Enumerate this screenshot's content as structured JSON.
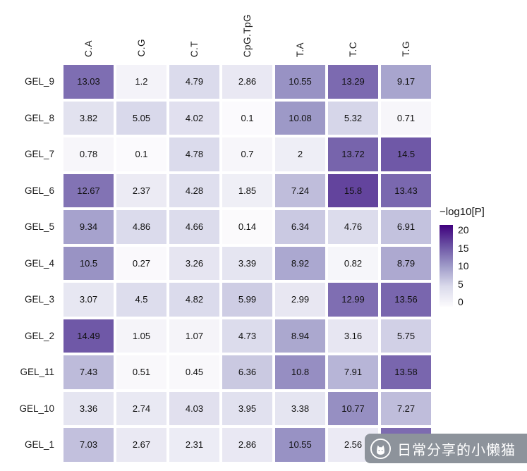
{
  "chart_data": {
    "type": "heatmap",
    "title": "",
    "columns": [
      "C.A",
      "C.G",
      "C.T",
      "CpG.TpG",
      "T.A",
      "T.C",
      "T.G"
    ],
    "rows": [
      "GEL_9",
      "GEL_8",
      "GEL_7",
      "GEL_6",
      "GEL_5",
      "GEL_4",
      "GEL_3",
      "GEL_2",
      "GEL_11",
      "GEL_10",
      "GEL_1"
    ],
    "values": [
      [
        13.03,
        1.2,
        4.79,
        2.86,
        10.55,
        13.29,
        9.17
      ],
      [
        3.82,
        5.05,
        4.02,
        0.1,
        10.08,
        5.32,
        0.71
      ],
      [
        0.78,
        0.1,
        4.78,
        0.7,
        2,
        13.72,
        14.5
      ],
      [
        12.67,
        2.37,
        4.28,
        1.85,
        7.24,
        15.8,
        13.43
      ],
      [
        9.34,
        4.86,
        4.66,
        0.14,
        6.34,
        4.76,
        6.91
      ],
      [
        10.5,
        0.27,
        3.26,
        3.39,
        8.92,
        0.82,
        8.79
      ],
      [
        3.07,
        4.5,
        4.82,
        5.99,
        2.99,
        12.99,
        13.56
      ],
      [
        14.49,
        1.05,
        1.07,
        4.73,
        8.94,
        3.16,
        5.75
      ],
      [
        7.43,
        0.51,
        0.45,
        6.36,
        10.8,
        7.91,
        13.58
      ],
      [
        3.36,
        2.74,
        4.03,
        3.95,
        3.38,
        10.77,
        7.27
      ],
      [
        7.03,
        2.67,
        2.31,
        2.86,
        10.55,
        2.56,
        13.2
      ]
    ],
    "legend": {
      "title": "−log10[P]",
      "ticks": [
        20,
        15,
        10,
        5,
        0
      ],
      "min": 0,
      "max": 20,
      "position": "right"
    },
    "colors": {
      "scale_stops": [
        "#fcfbfd",
        "#dadaeb",
        "#9e9ac8",
        "#6a51a3",
        "#3f007d"
      ]
    },
    "layout": {
      "grid": false,
      "column_labels_position": "top",
      "column_labels_rotation": 90
    }
  },
  "watermark": {
    "text": "日常分享的小懒猫"
  }
}
